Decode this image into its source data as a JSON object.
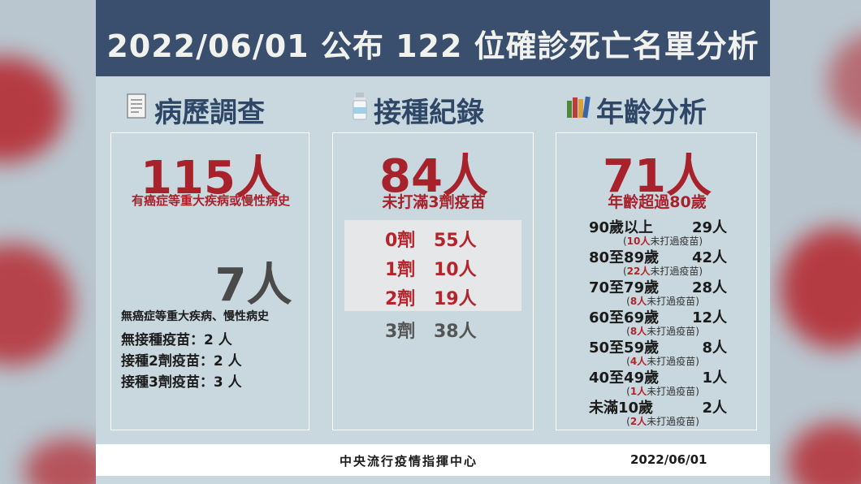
{
  "header": {
    "title": "2022/06/01 公布 122 位確診死亡名單分析"
  },
  "sections": {
    "history": {
      "title": "病歷調查",
      "icon": "document-icon",
      "main_count": "115人",
      "main_desc": "有癌症等重大疾病或慢性病史",
      "second_count": "7人",
      "second_desc": "無癌症等重大疾病、慢性病史",
      "lines": [
        "無接種疫苗：2 人",
        "接種2劑疫苗：2 人",
        "接種3劑疫苗：3 人"
      ]
    },
    "vaccination": {
      "title": "接種紀錄",
      "icon": "vaccine-vial-icon",
      "main_count": "84人",
      "main_desc": "未打滿3劑疫苗",
      "doses": [
        {
          "dose": "0劑",
          "count": "55人"
        },
        {
          "dose": "1劑",
          "count": "10人"
        },
        {
          "dose": "2劑",
          "count": "19人"
        },
        {
          "dose": "3劑",
          "count": "38人"
        }
      ]
    },
    "age": {
      "title": "年齡分析",
      "icon": "books-icon",
      "main_count": "71人",
      "main_desc": "年齡超過80歲",
      "groups": [
        {
          "label": "90歲以上",
          "count": "29人",
          "note_num": "10人",
          "note_text": "未打過疫苗"
        },
        {
          "label": "80至89歲",
          "count": "42人",
          "note_num": "22人",
          "note_text": "未打過疫苗"
        },
        {
          "label": "70至79歲",
          "count": "28人",
          "note_num": "8人",
          "note_text": "未打過疫苗"
        },
        {
          "label": "60至69歲",
          "count": "12人",
          "note_num": "8人",
          "note_text": "未打過疫苗"
        },
        {
          "label": "50至59歲",
          "count": "8人",
          "note_num": "4人",
          "note_text": "未打過疫苗"
        },
        {
          "label": "40至49歲",
          "count": "1人",
          "note_num": "1人",
          "note_text": "未打過疫苗"
        },
        {
          "label": "未滿10歲",
          "count": "2人",
          "note_num": "2人",
          "note_text": "未打過疫苗"
        }
      ]
    }
  },
  "footer": {
    "org": "中央流行疫情指揮中心",
    "date": "2022/06/01"
  },
  "colors": {
    "header_bg": "#3a4f6e",
    "accent_red": "#a8222b",
    "panel_bg": "#c9d8df",
    "title_blue": "#2f4766"
  }
}
